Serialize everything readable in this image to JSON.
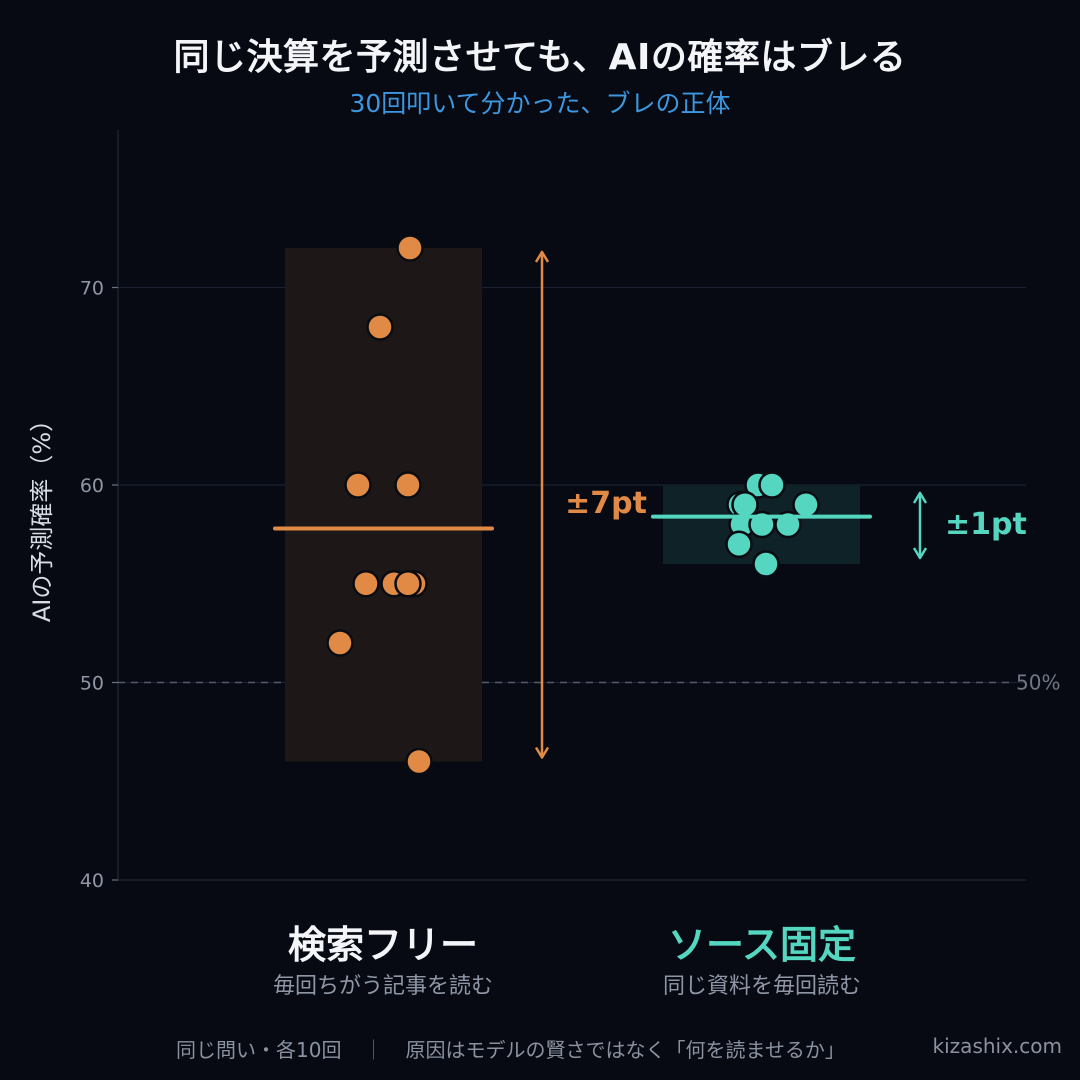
{
  "title": "同じ決算を予測させても、AIの確率はブレる",
  "subtitle": "30回叩いて分かった、ブレの正体",
  "footer": {
    "left": "同じ問い・各10回",
    "separator": "｜",
    "right": "原因はモデルの賢さではなく「何を読ませるか」",
    "site": "kizashix.com"
  },
  "chart_data": {
    "type": "scatter",
    "title": "同じ決算を予測させても、AIの確率はブレる",
    "subtitle": "30回叩いて分かった、ブレの正体",
    "ylabel": "AIの予測確率（%）",
    "xlabel": "",
    "ylim": [
      40,
      78
    ],
    "yticks": [
      40,
      50,
      60,
      70
    ],
    "grid": true,
    "reference_line": {
      "y": 50,
      "label": "50%"
    },
    "categories": [
      "検索フリー",
      "ソース固定"
    ],
    "category_subtitles": [
      "毎回ちがう記事を読む",
      "同じ資料を毎回読む"
    ],
    "series": [
      {
        "name": "検索フリー",
        "color": "#e08a46",
        "values": [
          72,
          68,
          60,
          60,
          55,
          55,
          55,
          55,
          52,
          46
        ],
        "mean": 57.8,
        "range": [
          46,
          72
        ],
        "spread_label": "±7pt"
      },
      {
        "name": "ソース固定",
        "color": "#55d6c0",
        "values": [
          60,
          60,
          59,
          59,
          58,
          58,
          58,
          57,
          56,
          59
        ],
        "mean": 58.4,
        "range": [
          56,
          60
        ],
        "spread_label": "±1pt"
      }
    ]
  }
}
